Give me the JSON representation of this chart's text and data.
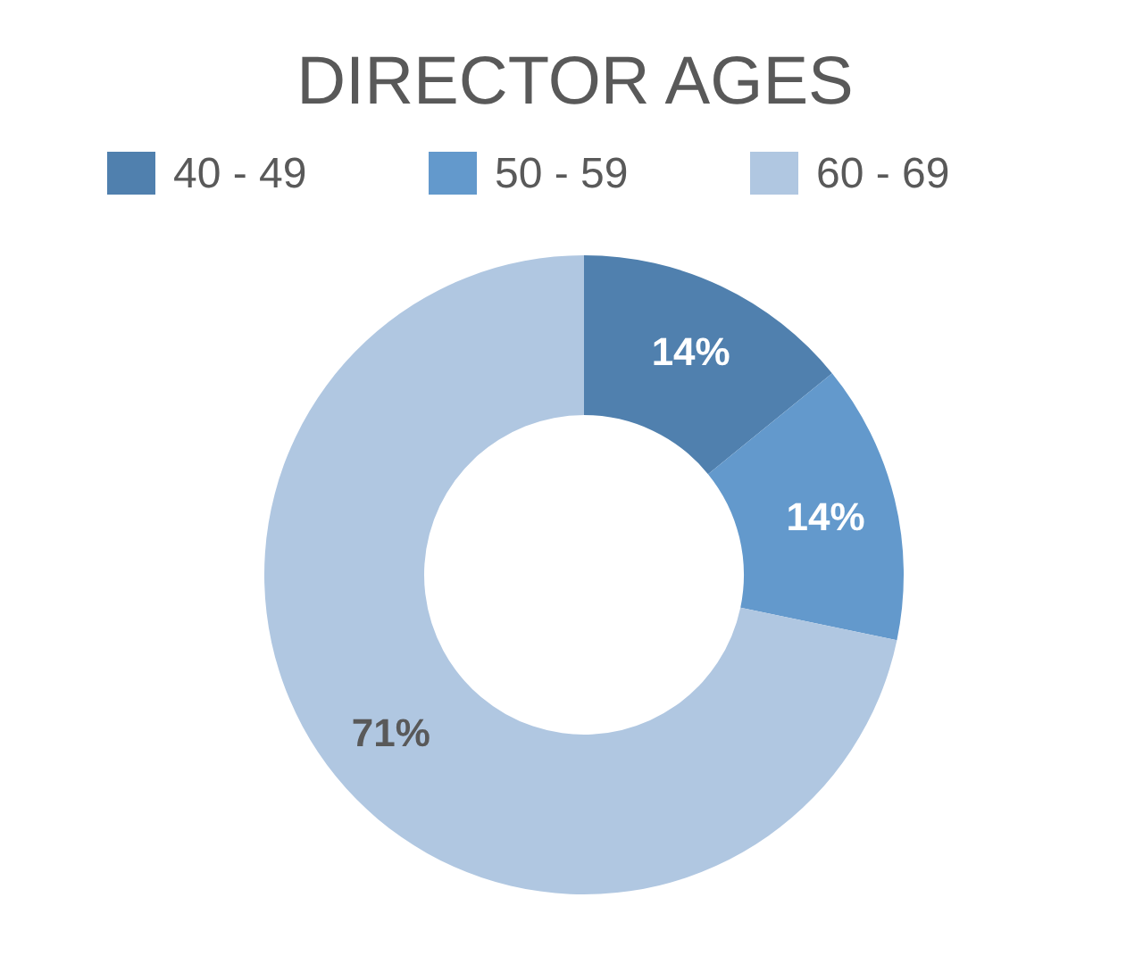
{
  "chart_data": {
    "type": "donut",
    "title": "DIRECTOR AGES",
    "categories": [
      "40 - 49",
      "50 - 59",
      "60 - 69"
    ],
    "values": [
      14,
      14,
      71
    ],
    "colors": [
      "#5080ae",
      "#6399cc",
      "#b0c7e1"
    ],
    "value_labels": [
      "14%",
      "14%",
      "71%"
    ],
    "legend": "top"
  }
}
